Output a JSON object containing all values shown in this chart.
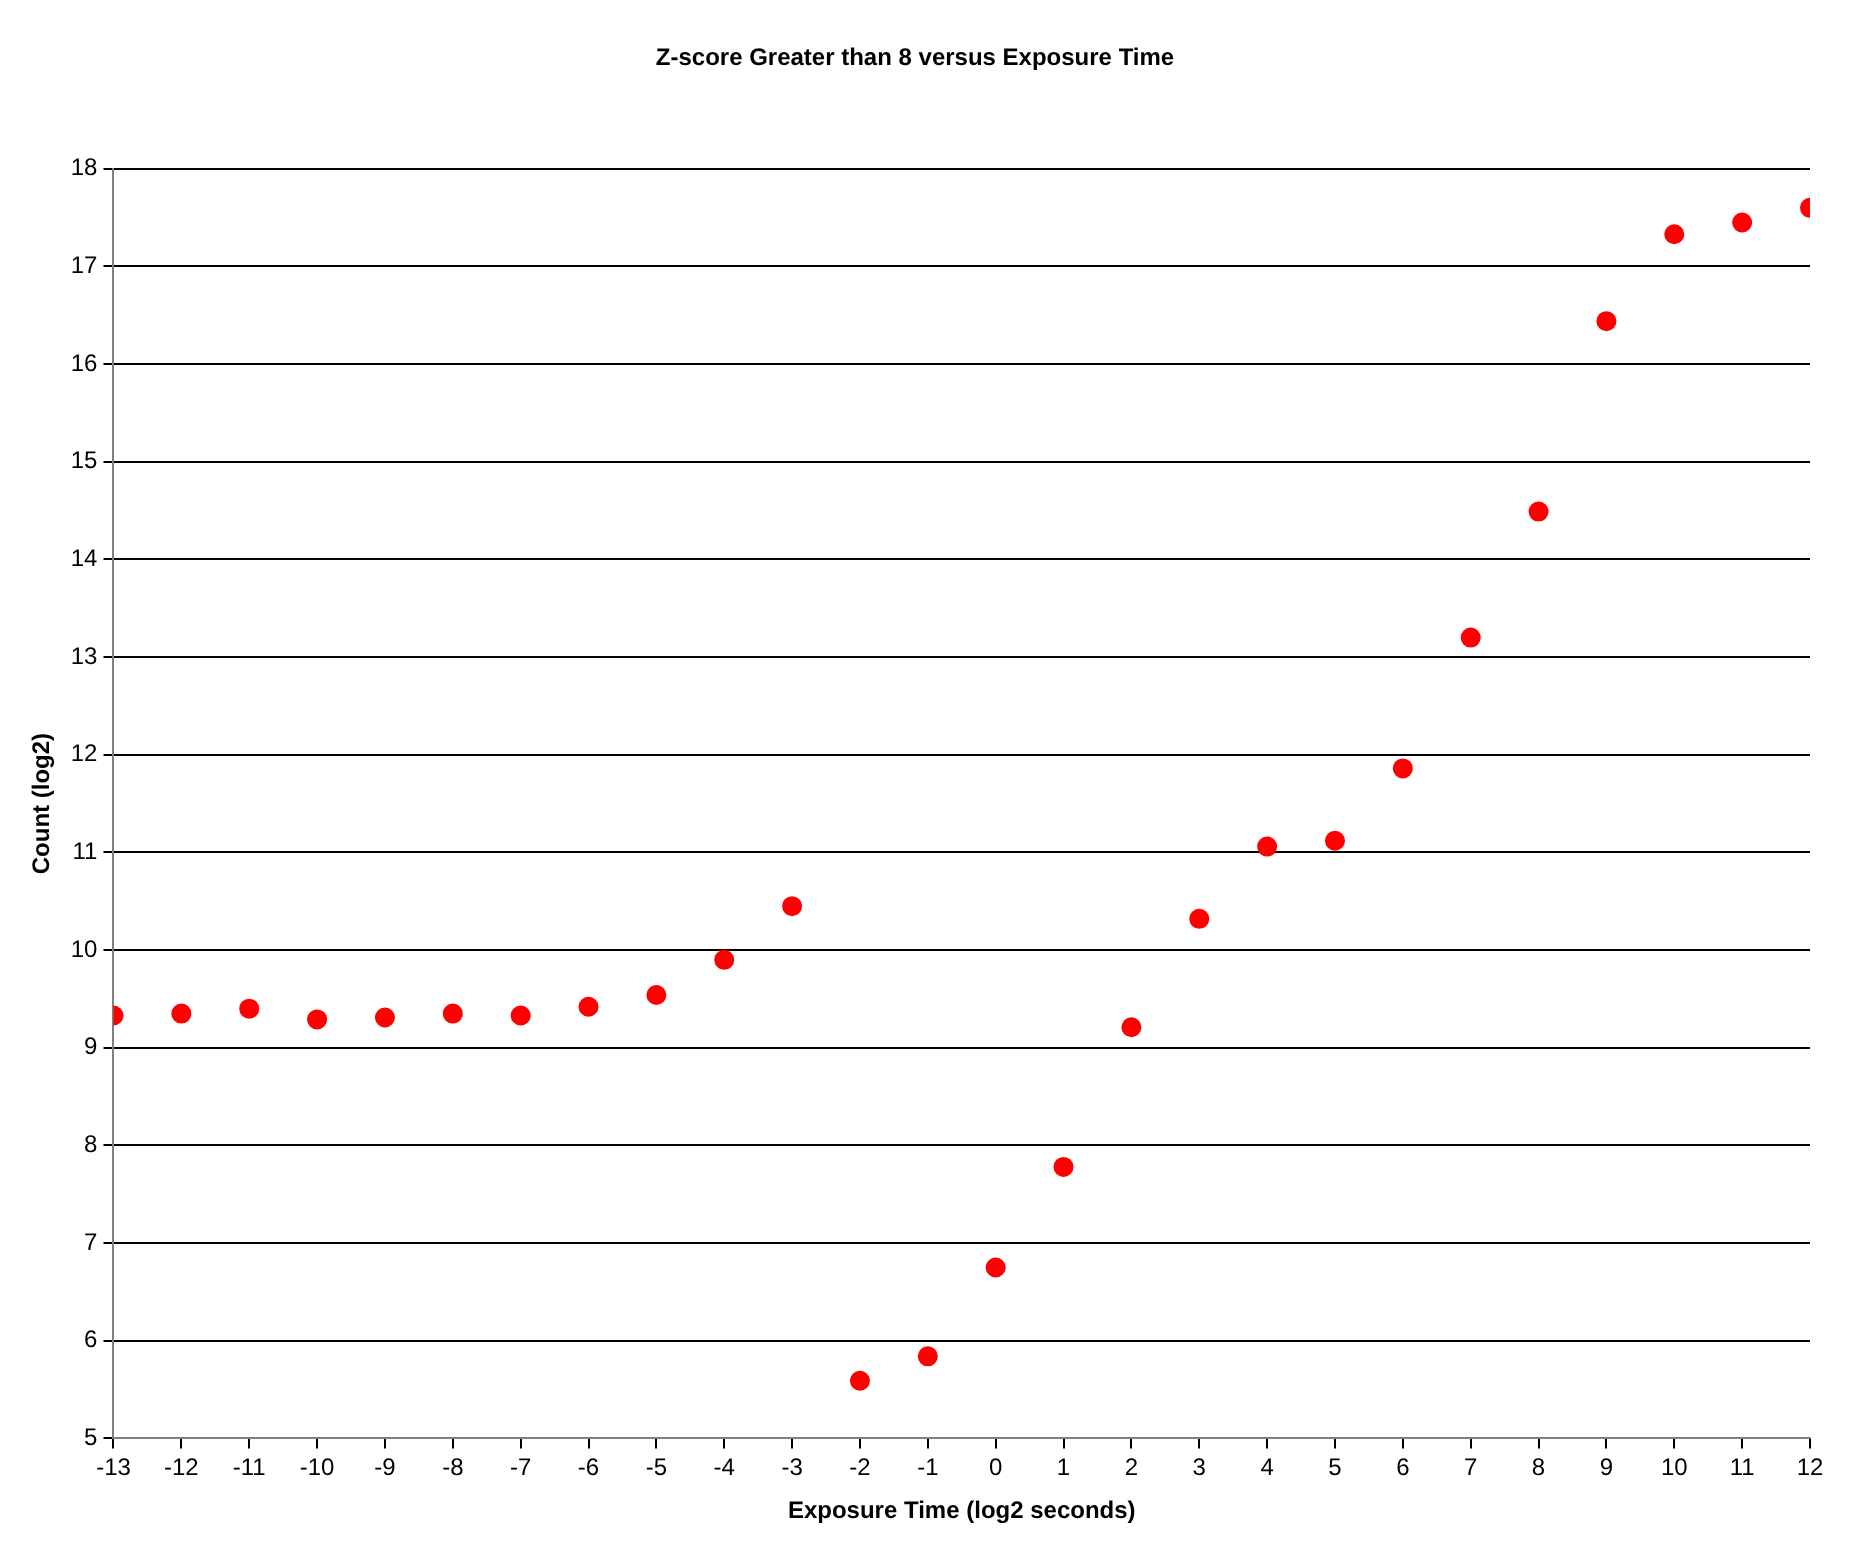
{
  "chart_data": {
    "type": "scatter",
    "title": "Z-score Greater than 8 versus Exposure Time",
    "xlabel": "Exposure Time (log2 seconds)",
    "ylabel": "Count (log2)",
    "x": [
      -13,
      -12,
      -11,
      -10,
      -9,
      -8,
      -7,
      -6,
      -5,
      -4,
      -3,
      -2,
      -1,
      0,
      1,
      2,
      3,
      4,
      5,
      6,
      7,
      8,
      9,
      10,
      11,
      12
    ],
    "series": [
      {
        "color": "#ff0000",
        "values": [
          9.33,
          9.35,
          9.4,
          9.29,
          9.31,
          9.35,
          9.33,
          9.42,
          9.54,
          9.9,
          10.45,
          5.59,
          5.84,
          6.75,
          7.78,
          9.21,
          10.32,
          11.06,
          11.12,
          11.86,
          13.2,
          14.49,
          16.44,
          17.33,
          17.45,
          17.6
        ]
      }
    ],
    "xlim": [
      -13,
      12
    ],
    "xticks": [
      -13,
      -12,
      -11,
      -10,
      -9,
      -8,
      -7,
      -6,
      -5,
      -4,
      -3,
      -2,
      -1,
      0,
      1,
      2,
      3,
      4,
      5,
      6,
      7,
      8,
      9,
      10,
      11,
      12
    ],
    "ylim": [
      5,
      18
    ],
    "yticks": [
      5,
      6,
      7,
      8,
      9,
      10,
      11,
      12,
      13,
      14,
      15,
      16,
      17,
      18
    ],
    "grid": "y",
    "marker": "circle",
    "legend": false
  }
}
